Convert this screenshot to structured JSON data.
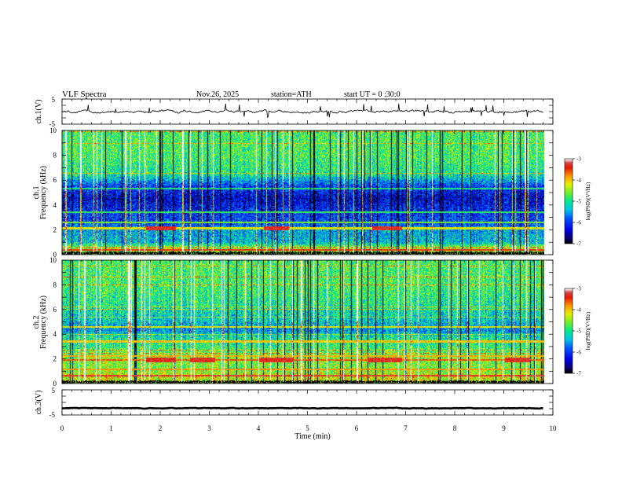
{
  "header": {
    "title": "VLF  Spectra",
    "date": "Nov.26, 2025",
    "station": "station=ATH",
    "start": "start  UT  =    0  :30:0"
  },
  "chart_data": [
    {
      "type": "line",
      "title": "",
      "ylabel": "ch.1(V)",
      "xlim": [
        0,
        10
      ],
      "ylim": [
        -5,
        5
      ],
      "yticks": [
        "5",
        "-5"
      ],
      "baseline": 0,
      "amplitude": 1.2,
      "color": "#000000"
    },
    {
      "type": "heatmap",
      "ylabel_channel": "ch.1",
      "ylabel": "Frequency  (kHz)",
      "xlim": [
        0,
        10
      ],
      "ylim": [
        0,
        10
      ],
      "yticks": [
        "0",
        "2",
        "4",
        "6",
        "8",
        "10"
      ],
      "colorbar": {
        "range": [
          -7,
          -3
        ],
        "ticks": [
          "-3",
          "-4",
          "-5",
          "-6",
          "-7"
        ],
        "label": "log(PSD)(V²/Hz)"
      },
      "profile": [
        {
          "f": 0,
          "v": -4.6
        },
        {
          "f": 0.4,
          "v": -4.3
        },
        {
          "f": 1.0,
          "v": -5.4
        },
        {
          "f": 2.0,
          "v": -5.5
        },
        {
          "f": 2.5,
          "v": -5.9
        },
        {
          "f": 3.5,
          "v": -6.1
        },
        {
          "f": 4.5,
          "v": -6.4
        },
        {
          "f": 5.5,
          "v": -6.0
        },
        {
          "f": 6.5,
          "v": -5.0
        },
        {
          "f": 8.0,
          "v": -4.8
        },
        {
          "f": 10,
          "v": -4.8
        }
      ],
      "bands": [
        {
          "f": 0.35,
          "v": -3.4
        },
        {
          "f": 2.1,
          "v": -4.2
        },
        {
          "f": 2.6,
          "v": -4.6
        },
        {
          "f": 3.4,
          "v": -4.8
        },
        {
          "f": 5.3,
          "v": -4.9
        }
      ],
      "tones": [
        {
          "t0": 1.7,
          "t1": 2.3,
          "f": 2.1
        },
        {
          "t0": 4.1,
          "t1": 4.6,
          "f": 2.1
        },
        {
          "t0": 6.3,
          "t1": 6.9,
          "f": 2.1
        }
      ]
    },
    {
      "type": "heatmap",
      "ylabel_channel": "ch.2",
      "ylabel": "Frequency  (kHz)",
      "xlim": [
        0,
        10
      ],
      "ylim": [
        0,
        10
      ],
      "yticks": [
        "0",
        "2",
        "4",
        "6",
        "8",
        "10"
      ],
      "colorbar": {
        "range": [
          -7,
          -3
        ],
        "ticks": [
          "-3",
          "-4",
          "-5",
          "-6",
          "-7"
        ],
        "label": "log(PSD)(V²/Hz)"
      },
      "profile": [
        {
          "f": 0,
          "v": -4.4
        },
        {
          "f": 0.5,
          "v": -4.2
        },
        {
          "f": 1.2,
          "v": -4.6
        },
        {
          "f": 2.0,
          "v": -4.5
        },
        {
          "f": 3.0,
          "v": -4.9
        },
        {
          "f": 3.8,
          "v": -5.1
        },
        {
          "f": 4.3,
          "v": -5.6
        },
        {
          "f": 5.0,
          "v": -5.3
        },
        {
          "f": 6.5,
          "v": -5.0
        },
        {
          "f": 8.0,
          "v": -4.8
        },
        {
          "f": 10,
          "v": -4.8
        }
      ],
      "bands": [
        {
          "f": 0.6,
          "v": -3.3
        },
        {
          "f": 1.1,
          "v": -3.8
        },
        {
          "f": 1.9,
          "v": -3.6
        },
        {
          "f": 2.2,
          "v": -3.9
        },
        {
          "f": 3.4,
          "v": -4.0
        },
        {
          "f": 4.6,
          "v": -4.2
        }
      ],
      "tones": [
        {
          "t0": 1.7,
          "t1": 2.3,
          "f": 1.9
        },
        {
          "t0": 2.6,
          "t1": 3.1,
          "f": 1.9
        },
        {
          "t0": 4.0,
          "t1": 4.7,
          "f": 1.9
        },
        {
          "t0": 6.2,
          "t1": 6.9,
          "f": 1.9
        },
        {
          "t0": 9.0,
          "t1": 9.5,
          "f": 1.9
        }
      ]
    },
    {
      "type": "line",
      "title": "",
      "ylabel": "ch.3(V)",
      "xlim": [
        0,
        10
      ],
      "ylim": [
        -5,
        5
      ],
      "yticks": [
        "5",
        "-5"
      ],
      "baseline": -2.3,
      "amplitude": 0.25,
      "color": "#000000"
    }
  ],
  "xaxis": {
    "label": "Time  (min)",
    "ticks": [
      "0",
      "1",
      "2",
      "3",
      "4",
      "5",
      "6",
      "7",
      "8",
      "9",
      "10"
    ],
    "data_end": 9.8
  }
}
